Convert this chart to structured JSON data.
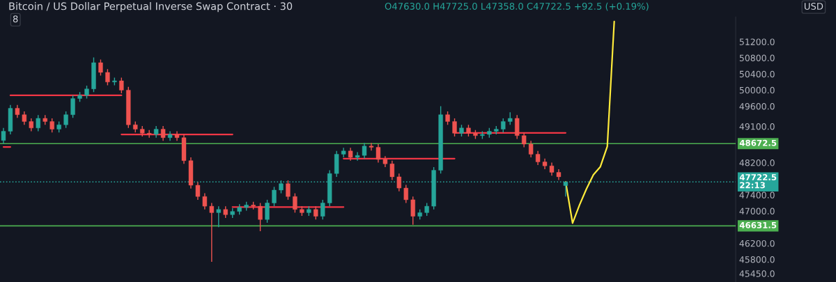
{
  "chart_data": {
    "type": "candlestick",
    "title": "Bitcoin / US Dollar Perpetual Inverse Swap Contract · 30",
    "categories": [
      null,
      null,
      null,
      null,
      null,
      null,
      null,
      null,
      null,
      null,
      null,
      null,
      null,
      null,
      null,
      null,
      null,
      null,
      null,
      null,
      null,
      null,
      null,
      null,
      null,
      null,
      null,
      null,
      null,
      null,
      null,
      null,
      null,
      null,
      null,
      null,
      null,
      null,
      null,
      null,
      null,
      null,
      null,
      null,
      null,
      null,
      null,
      null,
      null,
      null,
      null,
      null,
      null,
      null,
      null,
      null,
      null,
      null,
      null,
      null,
      null,
      null,
      null,
      null,
      null,
      null,
      null,
      null,
      null,
      null,
      null,
      null,
      null,
      null,
      null,
      null,
      null,
      null,
      null,
      null,
      null,
      null,
      null,
      null,
      null,
      null,
      null,
      null,
      null,
      null,
      null,
      null,
      null,
      null,
      null,
      null,
      null,
      null,
      null,
      null,
      null,
      null,
      null,
      null,
      null,
      null
    ],
    "ohlc": [
      [
        48750,
        49060,
        48670,
        48980
      ],
      [
        48980,
        49630,
        48900,
        49550
      ],
      [
        49550,
        49630,
        49310,
        49390
      ],
      [
        49390,
        49470,
        49140,
        49220
      ],
      [
        49220,
        49300,
        48980,
        49060
      ],
      [
        49060,
        49380,
        48980,
        49300
      ],
      [
        49300,
        49380,
        49140,
        49220
      ],
      [
        49220,
        49300,
        48950,
        49030
      ],
      [
        49030,
        49220,
        48950,
        49140
      ],
      [
        49140,
        49470,
        49060,
        49390
      ],
      [
        49390,
        49870,
        49310,
        49790
      ],
      [
        49790,
        49950,
        49710,
        49870
      ],
      [
        49870,
        50110,
        49790,
        50030
      ],
      [
        50030,
        50810,
        49950,
        50680
      ],
      [
        50680,
        50760,
        50360,
        50440
      ],
      [
        50440,
        50520,
        50120,
        50200
      ],
      [
        50200,
        50310,
        50120,
        50230
      ],
      [
        50230,
        50310,
        49920,
        50000
      ],
      [
        50000,
        50080,
        49060,
        49140
      ],
      [
        49140,
        49220,
        48950,
        49030
      ],
      [
        49030,
        49110,
        48850,
        48930
      ],
      [
        48930,
        49010,
        48820,
        48900
      ],
      [
        48900,
        49110,
        48820,
        49030
      ],
      [
        49030,
        49110,
        48740,
        48820
      ],
      [
        48820,
        48980,
        48740,
        48900
      ],
      [
        48900,
        48980,
        48740,
        48820
      ],
      [
        48820,
        48900,
        48170,
        48250
      ],
      [
        48250,
        48330,
        47560,
        47640
      ],
      [
        47640,
        47720,
        47280,
        47360
      ],
      [
        47360,
        47440,
        47040,
        47120
      ],
      [
        47120,
        47200,
        45740,
        46960
      ],
      [
        46960,
        47120,
        46600,
        47040
      ],
      [
        47040,
        47120,
        46830,
        46910
      ],
      [
        46910,
        47070,
        46830,
        46990
      ],
      [
        46990,
        47170,
        46910,
        47090
      ],
      [
        47090,
        47230,
        47010,
        47150
      ],
      [
        47150,
        47230,
        47040,
        47120
      ],
      [
        47120,
        47200,
        46500,
        46790
      ],
      [
        46790,
        47280,
        46710,
        47200
      ],
      [
        47200,
        47600,
        47120,
        47520
      ],
      [
        47520,
        47760,
        47440,
        47680
      ],
      [
        47680,
        47760,
        47280,
        47360
      ],
      [
        47360,
        47440,
        46960,
        47040
      ],
      [
        47040,
        47120,
        46880,
        46960
      ],
      [
        46960,
        47120,
        46880,
        47040
      ],
      [
        47040,
        47120,
        46790,
        46870
      ],
      [
        46870,
        47280,
        46790,
        47200
      ],
      [
        47200,
        48010,
        47120,
        47930
      ],
      [
        47930,
        48490,
        47850,
        48410
      ],
      [
        48410,
        48570,
        48330,
        48490
      ],
      [
        48490,
        48570,
        48250,
        48330
      ],
      [
        48330,
        48460,
        48250,
        48380
      ],
      [
        48380,
        48690,
        48300,
        48610
      ],
      [
        48610,
        48690,
        48500,
        48580
      ],
      [
        48580,
        48660,
        48200,
        48280
      ],
      [
        48280,
        48360,
        48090,
        48170
      ],
      [
        48170,
        48250,
        47770,
        47850
      ],
      [
        47850,
        47930,
        47490,
        47570
      ],
      [
        47570,
        47650,
        47200,
        47280
      ],
      [
        47280,
        47360,
        46660,
        46870
      ],
      [
        46870,
        47040,
        46790,
        46960
      ],
      [
        46960,
        47200,
        46880,
        47120
      ],
      [
        47120,
        48090,
        47040,
        48010
      ],
      [
        48010,
        49600,
        47930,
        49390
      ],
      [
        49390,
        49470,
        49140,
        49220
      ],
      [
        49220,
        49300,
        48850,
        48930
      ],
      [
        48930,
        49140,
        48850,
        49060
      ],
      [
        49060,
        49140,
        48850,
        48930
      ],
      [
        48930,
        49010,
        48790,
        48870
      ],
      [
        48870,
        48980,
        48790,
        48900
      ],
      [
        48900,
        49060,
        48820,
        48980
      ],
      [
        48980,
        49110,
        48900,
        49030
      ],
      [
        49030,
        49300,
        48950,
        49220
      ],
      [
        49220,
        49450,
        49140,
        49300
      ],
      [
        49300,
        49380,
        48790,
        48870
      ],
      [
        48870,
        48950,
        48580,
        48660
      ],
      [
        48660,
        48740,
        48330,
        48410
      ],
      [
        48410,
        48490,
        48140,
        48220
      ],
      [
        48220,
        48300,
        48040,
        48120
      ],
      [
        48120,
        48200,
        47880,
        47960
      ],
      [
        47960,
        48040,
        47770,
        47850
      ],
      [
        47630,
        47725,
        47358,
        47722.5
      ],
      null,
      null,
      null,
      null,
      null,
      null,
      null,
      null,
      null,
      null,
      null,
      null,
      null,
      null,
      null,
      null,
      null,
      null,
      null,
      null,
      null,
      null,
      null,
      null
    ],
    "series": [
      {
        "type": "line",
        "color": "#f23645",
        "values": [
          48590,
          48590,
          null,
          null,
          null,
          null,
          null,
          null,
          null,
          null,
          null,
          null,
          null,
          null,
          null,
          null,
          null,
          null,
          null,
          null,
          null,
          null,
          null,
          null,
          null,
          null,
          null,
          null,
          null,
          null,
          null,
          null,
          null,
          null,
          null,
          null,
          null,
          null,
          null,
          null,
          null,
          null,
          null,
          null,
          null,
          null,
          null,
          null,
          null,
          null,
          null,
          null,
          null,
          null,
          null,
          null,
          null,
          null,
          null,
          null,
          null,
          null,
          null,
          null,
          null,
          null,
          null,
          null,
          null,
          null,
          null,
          null,
          null,
          null,
          null,
          null,
          null,
          null,
          null,
          null,
          null,
          null,
          null,
          null,
          null,
          null,
          null,
          null,
          null,
          null,
          null,
          null,
          null,
          null,
          null,
          null,
          null,
          null,
          null,
          null,
          null,
          null,
          null,
          null,
          null,
          null
        ]
      },
      {
        "type": "line",
        "color": "#f23645",
        "values": [
          null,
          49870,
          49870,
          49870,
          49870,
          49870,
          49870,
          49870,
          49870,
          49870,
          49870,
          49870,
          49870,
          49870,
          49870,
          49870,
          49870,
          49870,
          null,
          null,
          null,
          null,
          null,
          null,
          null,
          null,
          null,
          null,
          null,
          null,
          null,
          null,
          null,
          null,
          null,
          null,
          null,
          null,
          null,
          null,
          null,
          null,
          null,
          null,
          null,
          null,
          null,
          null,
          null,
          null,
          null,
          null,
          null,
          null,
          null,
          null,
          null,
          null,
          null,
          null,
          null,
          null,
          null,
          null,
          null,
          null,
          null,
          null,
          null,
          null,
          null,
          null,
          null,
          null,
          null,
          null,
          null,
          null,
          null,
          null,
          null,
          null,
          null,
          null,
          null,
          null,
          null,
          null,
          null,
          null,
          null,
          null,
          null,
          null,
          null,
          null,
          null,
          null,
          null,
          null,
          null,
          null,
          null,
          null,
          null,
          null
        ]
      },
      {
        "type": "line",
        "color": "#f23645",
        "values": [
          null,
          null,
          null,
          null,
          null,
          null,
          null,
          null,
          null,
          null,
          null,
          null,
          null,
          null,
          null,
          null,
          null,
          48900,
          48900,
          48900,
          48900,
          48900,
          48900,
          48900,
          48900,
          48900,
          48900,
          48900,
          48900,
          48900,
          48900,
          48900,
          48900,
          48900,
          null,
          null,
          null,
          null,
          null,
          null,
          null,
          null,
          null,
          null,
          null,
          null,
          null,
          null,
          null,
          null,
          null,
          null,
          null,
          null,
          null,
          null,
          null,
          null,
          null,
          null,
          null,
          null,
          null,
          null,
          null,
          null,
          null,
          null,
          null,
          null,
          null,
          null,
          null,
          null,
          null,
          null,
          null,
          null,
          null,
          null,
          null,
          null,
          null,
          null,
          null,
          null,
          null,
          null,
          null,
          null,
          null,
          null,
          null,
          null,
          null,
          null,
          null,
          null,
          null,
          null,
          null,
          null,
          null,
          null,
          null,
          null
        ]
      },
      {
        "type": "line",
        "color": "#f23645",
        "values": [
          null,
          null,
          null,
          null,
          null,
          null,
          null,
          null,
          null,
          null,
          null,
          null,
          null,
          null,
          null,
          null,
          null,
          null,
          null,
          null,
          null,
          null,
          null,
          null,
          null,
          null,
          null,
          null,
          null,
          null,
          null,
          null,
          null,
          47100,
          47100,
          47100,
          47100,
          47100,
          47100,
          47100,
          47100,
          47100,
          47100,
          47100,
          47100,
          47100,
          47100,
          47100,
          47100,
          47100,
          null,
          null,
          null,
          null,
          null,
          null,
          null,
          null,
          null,
          null,
          null,
          null,
          null,
          null,
          null,
          null,
          null,
          null,
          null,
          null,
          null,
          null,
          null,
          null,
          null,
          null,
          null,
          null,
          null,
          null,
          null,
          null,
          null,
          null,
          null,
          null,
          null,
          null,
          null,
          null,
          null,
          null,
          null,
          null,
          null,
          null,
          null,
          null,
          null,
          null,
          null,
          null,
          null,
          null,
          null,
          null
        ]
      },
      {
        "type": "line",
        "color": "#f23645",
        "values": [
          null,
          null,
          null,
          null,
          null,
          null,
          null,
          null,
          null,
          null,
          null,
          null,
          null,
          null,
          null,
          null,
          null,
          null,
          null,
          null,
          null,
          null,
          null,
          null,
          null,
          null,
          null,
          null,
          null,
          null,
          null,
          null,
          null,
          null,
          null,
          null,
          null,
          null,
          null,
          null,
          null,
          null,
          null,
          null,
          null,
          null,
          null,
          null,
          null,
          48300,
          48300,
          48300,
          48300,
          48300,
          48300,
          48300,
          48300,
          48300,
          48300,
          48300,
          48300,
          48300,
          48300,
          48300,
          48300,
          48300,
          null,
          null,
          null,
          null,
          null,
          null,
          null,
          null,
          null,
          null,
          null,
          null,
          null,
          null,
          null,
          null,
          null,
          null,
          null,
          null,
          null,
          null,
          null,
          null,
          null,
          null,
          null,
          null,
          null,
          null,
          null,
          null,
          null,
          null,
          null,
          null,
          null,
          null,
          null,
          null
        ]
      },
      {
        "type": "line",
        "color": "#f23645",
        "values": [
          null,
          null,
          null,
          null,
          null,
          null,
          null,
          null,
          null,
          null,
          null,
          null,
          null,
          null,
          null,
          null,
          null,
          null,
          null,
          null,
          null,
          null,
          null,
          null,
          null,
          null,
          null,
          null,
          null,
          null,
          null,
          null,
          null,
          null,
          null,
          null,
          null,
          null,
          null,
          null,
          null,
          null,
          null,
          null,
          null,
          null,
          null,
          null,
          null,
          null,
          null,
          null,
          null,
          null,
          null,
          null,
          null,
          null,
          null,
          null,
          null,
          null,
          null,
          null,
          null,
          48940,
          48940,
          48940,
          48940,
          48940,
          48940,
          48940,
          48940,
          48940,
          48940,
          48940,
          48940,
          48940,
          48940,
          48940,
          48940,
          48940,
          null,
          null,
          null,
          null,
          null,
          null,
          null,
          null,
          null,
          null,
          null,
          null,
          null,
          null,
          null,
          null,
          null,
          null,
          null,
          null,
          null,
          null,
          null,
          null
        ]
      },
      {
        "type": "line",
        "color": "#ffeb3b",
        "values": [
          null,
          null,
          null,
          null,
          null,
          null,
          null,
          null,
          null,
          null,
          null,
          null,
          null,
          null,
          null,
          null,
          null,
          null,
          null,
          null,
          null,
          null,
          null,
          null,
          null,
          null,
          null,
          null,
          null,
          null,
          null,
          null,
          null,
          null,
          null,
          null,
          null,
          null,
          null,
          null,
          null,
          null,
          null,
          null,
          null,
          null,
          null,
          null,
          null,
          null,
          null,
          null,
          null,
          null,
          null,
          null,
          null,
          null,
          null,
          null,
          null,
          null,
          null,
          null,
          null,
          null,
          null,
          null,
          null,
          null,
          null,
          null,
          null,
          null,
          null,
          null,
          null,
          null,
          null,
          null,
          null,
          47720,
          46700,
          47150,
          47550,
          47900,
          48100,
          48600,
          51700,
          null,
          null,
          null,
          null,
          null,
          null,
          null,
          null,
          null,
          null,
          null,
          null,
          null,
          null,
          null,
          null,
          null
        ]
      }
    ],
    "ylim": [
      45240,
      51815
    ],
    "yticks": [
      {
        "value": 51200,
        "label": "51200.0"
      },
      {
        "value": 50800,
        "label": "50800.0"
      },
      {
        "value": 50400,
        "label": "50400.0"
      },
      {
        "value": 50000,
        "label": "50000.0"
      },
      {
        "value": 49600,
        "label": "49600.0"
      },
      {
        "value": 49100,
        "label": "49100.0"
      },
      {
        "value": 48200,
        "label": "48200.0"
      },
      {
        "value": 47400,
        "label": "47400.0"
      },
      {
        "value": 47000,
        "label": "47000.0"
      },
      {
        "value": 46200,
        "label": "46200.0"
      },
      {
        "value": 45800,
        "label": "45800.0"
      },
      {
        "value": 45450,
        "label": "45450.0"
      }
    ],
    "ref_lines": [
      {
        "axis": "y",
        "value": 48672.5,
        "label": "48672.5",
        "color": "#4caf50",
        "line_style": "solid"
      },
      {
        "axis": "y",
        "value": 46631.5,
        "label": "46631.5",
        "color": "#4caf50",
        "line_style": "solid"
      },
      {
        "axis": "y",
        "value": 47722.5,
        "label": "47722.5\n22:13",
        "color": "#26a69a",
        "line_style": "dotted"
      }
    ],
    "annotations": [
      "O47630.0 H47725.0 L47358.0 C47722.5 +92.5 (+0.19%)",
      "8",
      "USD"
    ],
    "grid": false,
    "tick_labels": "y"
  }
}
